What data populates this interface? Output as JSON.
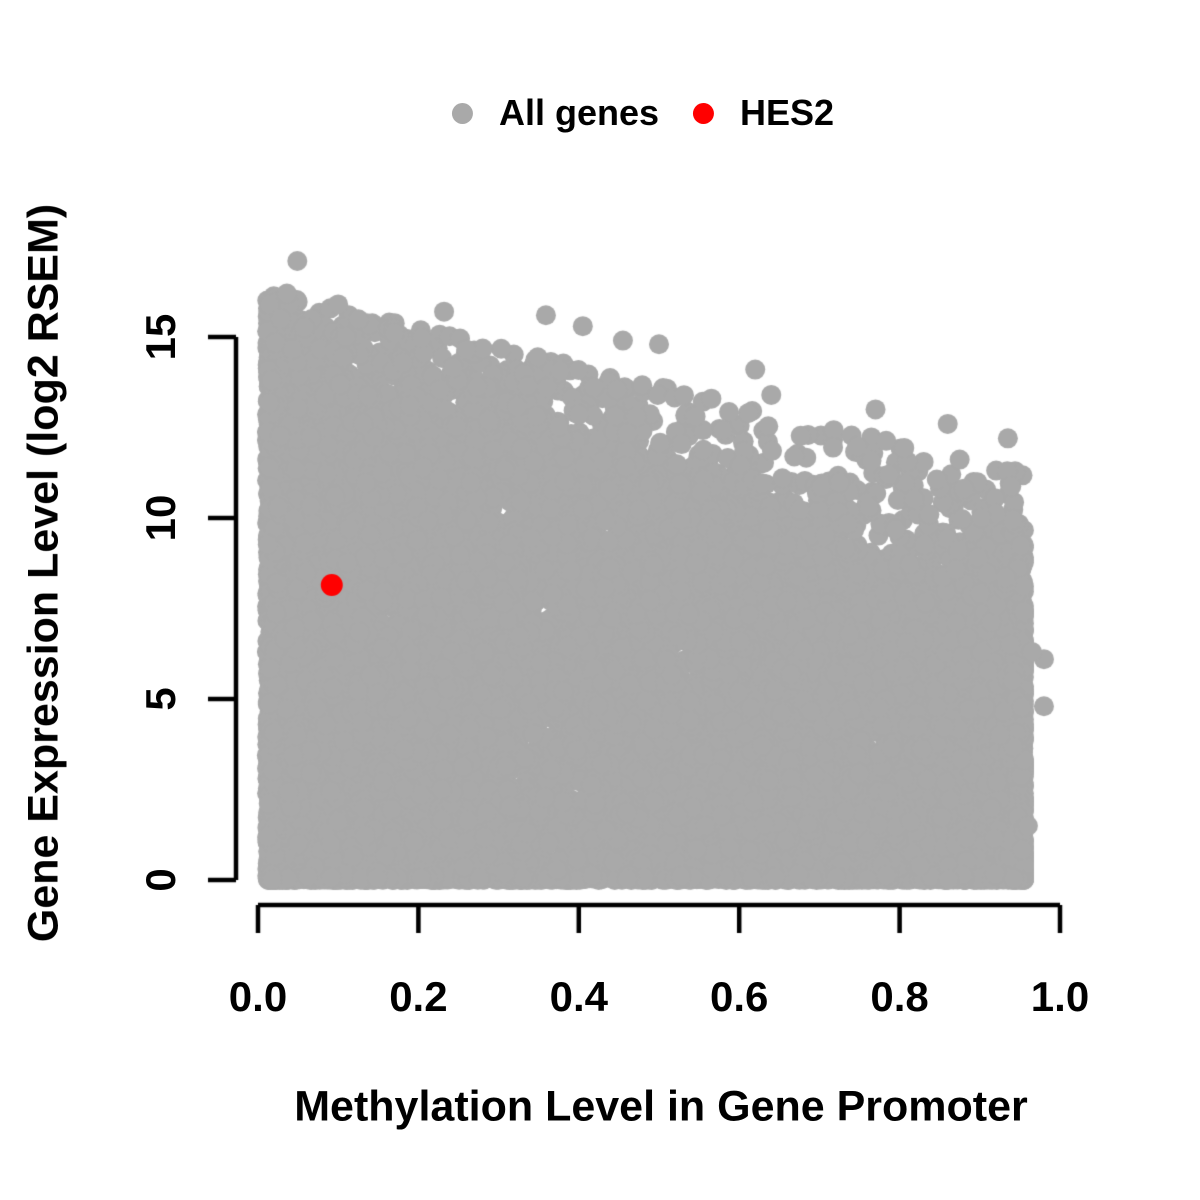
{
  "figure": {
    "background_color": "#FFFFFF"
  },
  "chart_data": {
    "type": "scatter",
    "title": "",
    "xlabel": "Methylation Level in Gene Promoter",
    "ylabel": "Gene Expression Level (log2 RSEM)",
    "xlim": [
      0,
      1
    ],
    "ylim": [
      0,
      15
    ],
    "x_ticks": {
      "values": [
        0.0,
        0.2,
        0.4,
        0.6,
        0.8,
        1.0
      ],
      "labels": [
        "0.0",
        "0.2",
        "0.4",
        "0.6",
        "0.8",
        "1.0"
      ]
    },
    "y_ticks": {
      "values": [
        0,
        5,
        10,
        15
      ],
      "labels": [
        "0",
        "5",
        "10",
        "15"
      ]
    },
    "grid": false,
    "axis_color": "#000000",
    "legend": {
      "position": "top-center",
      "items": [
        {
          "label": "All genes",
          "color": "#A9A9A9"
        },
        {
          "label": "HES2",
          "color": "#FF0000"
        }
      ]
    },
    "series": [
      {
        "name": "All genes",
        "color": "#A9A9A9",
        "marker": "filled-circle",
        "marker_radius_px": 10,
        "x_range": [
          0.01,
          0.96
        ],
        "y_range": [
          0,
          17.1
        ],
        "distribution": {
          "comment": "dense cloud: heavy at low methylation, solid fill from y=0 up to a declining envelope, sparse band above it",
          "n": 13000,
          "seed": 42,
          "x_min": 0.015,
          "x_max": 0.955,
          "x_mixture": [
            {
              "type": "power-low",
              "weight": 0.48,
              "exponent": 2.5
            },
            {
              "type": "uniform",
              "weight": 0.34
            },
            {
              "type": "power-high",
              "weight": 0.18,
              "exponent": 2.6
            }
          ],
          "x_jitter": 0.008,
          "y_solid_envelope": {
            "intercept": 14.2,
            "slope": -6.8
          },
          "y_max_envelope": {
            "intercept": 16.3,
            "slope": -5.3
          },
          "zero_fraction": 0.055,
          "band_fraction": 0.095,
          "fill_exponent": 1.12,
          "band_exponent": 1.7
        },
        "outlier_points": [
          [
            0.049,
            17.1
          ],
          [
            0.036,
            16.2
          ],
          [
            0.1,
            15.9
          ],
          [
            0.232,
            15.7
          ],
          [
            0.359,
            15.6
          ],
          [
            0.405,
            15.3
          ],
          [
            0.5,
            14.8
          ],
          [
            0.455,
            14.9
          ],
          [
            0.62,
            14.1
          ],
          [
            0.64,
            13.4
          ],
          [
            0.77,
            13.0
          ],
          [
            0.86,
            12.6
          ],
          [
            0.935,
            12.2
          ],
          [
            0.98,
            6.1
          ],
          [
            0.98,
            4.8
          ],
          [
            0.965,
            6.3
          ],
          [
            0.96,
            1.5
          ],
          [
            0.012,
            1.2
          ]
        ]
      },
      {
        "name": "HES2",
        "color": "#FF0000",
        "marker": "filled-circle",
        "marker_radius_px": 11,
        "points": [
          [
            0.092,
            8.15
          ]
        ]
      }
    ]
  }
}
